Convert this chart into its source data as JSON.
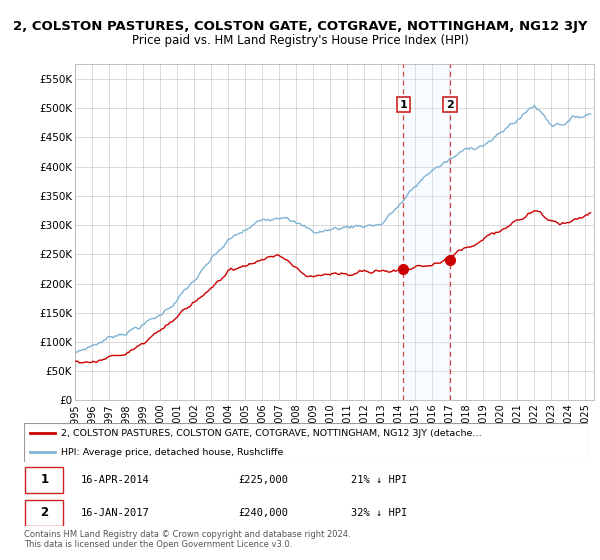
{
  "title": "2, COLSTON PASTURES, COLSTON GATE, COTGRAVE, NOTTINGHAM, NG12 3JY",
  "subtitle": "Price paid vs. HM Land Registry's House Price Index (HPI)",
  "ylabel_ticks": [
    "£0",
    "£50K",
    "£100K",
    "£150K",
    "£200K",
    "£250K",
    "£300K",
    "£350K",
    "£400K",
    "£450K",
    "£500K",
    "£550K"
  ],
  "ytick_values": [
    0,
    50000,
    100000,
    150000,
    200000,
    250000,
    300000,
    350000,
    400000,
    450000,
    500000,
    550000
  ],
  "ylim": [
    0,
    575000
  ],
  "xlim_start": 1995.0,
  "xlim_end": 2025.5,
  "hpi_color": "#7fb3d3",
  "price_color": "#cc0000",
  "sale1_date": 2014.29,
  "sale1_price": 225000,
  "sale2_date": 2017.04,
  "sale2_price": 240000,
  "legend_label_price": "2, COLSTON PASTURES, COLSTON GATE, COTGRAVE, NOTTINGHAM, NG12 3JY (detache…",
  "legend_label_hpi": "HPI: Average price, detached house, Rushcliffe",
  "table_row1": [
    "1",
    "16-APR-2014",
    "£225,000",
    "21% ↓ HPI"
  ],
  "table_row2": [
    "2",
    "16-JAN-2017",
    "£240,000",
    "32% ↓ HPI"
  ],
  "footnote1": "Contains HM Land Registry data © Crown copyright and database right 2024.",
  "footnote2": "This data is licensed under the Open Government Licence v3.0.",
  "grid_color": "#cccccc",
  "shade_color": "#ddeeff"
}
